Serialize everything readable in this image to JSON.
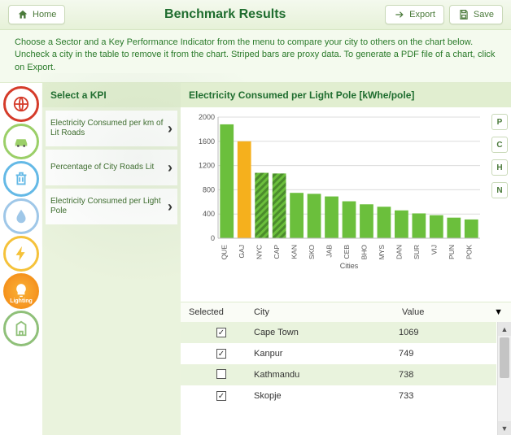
{
  "topbar": {
    "home_label": "Home",
    "title": "Benchmark Results",
    "export_label": "Export",
    "save_label": "Save"
  },
  "instructions": "Choose a Sector and a Key Performance Indicator from the menu to compare your city to others on the chart below. Uncheck a city in the table to remove it from the chart. Striped bars are proxy data. To generate a PDF file of a chart, click on Export.",
  "sectors": [
    {
      "name": "globe",
      "color": "#d53b2a"
    },
    {
      "name": "car",
      "color": "#9bcf68"
    },
    {
      "name": "trash",
      "color": "#64b9e6"
    },
    {
      "name": "water",
      "color": "#9fc7e8"
    },
    {
      "name": "energy",
      "color": "#f5c23a"
    },
    {
      "name": "lighting",
      "color": "#f5941d",
      "active": true,
      "label": "Lighting"
    },
    {
      "name": "building",
      "color": "#8fc079"
    }
  ],
  "kpi": {
    "header": "Select a KPI",
    "items": [
      "Electricity Consumed per km of Lit Roads",
      "Percentage of City Roads Lit",
      "Electricity Consumed per Light Pole"
    ]
  },
  "chart": {
    "title": "Electricity Consumed per Light Pole [kWhe/pole]",
    "type": "bar",
    "y": {
      "min": 0,
      "max": 2000,
      "step": 400,
      "ticks": [
        0,
        400,
        800,
        1200,
        1600,
        2000
      ]
    },
    "xlabel": "Cities",
    "colors": {
      "bar": "#6bbf3c",
      "highlight": "#f5b01d",
      "stripe_dark": "#4b8c2c",
      "grid": "#dcdcdc",
      "axis": "#bbbbbb",
      "text": "#4a7a3a",
      "background": "#ffffff"
    },
    "bars": [
      {
        "label": "QUE",
        "value": 1880
      },
      {
        "label": "GAJ",
        "value": 1600,
        "highlight": true
      },
      {
        "label": "NYC",
        "value": 1080,
        "proxy": true
      },
      {
        "label": "CAP",
        "value": 1069,
        "proxy": true
      },
      {
        "label": "KAN",
        "value": 749
      },
      {
        "label": "SKO",
        "value": 733
      },
      {
        "label": "JAB",
        "value": 690
      },
      {
        "label": "CEB",
        "value": 610
      },
      {
        "label": "BHO",
        "value": 560
      },
      {
        "label": "MYS",
        "value": 520
      },
      {
        "label": "DAN",
        "value": 460
      },
      {
        "label": "SUR",
        "value": 410
      },
      {
        "label": "VIJ",
        "value": 380
      },
      {
        "label": "PUN",
        "value": 340
      },
      {
        "label": "POK",
        "value": 310
      }
    ],
    "side_controls": [
      "P",
      "C",
      "H",
      "N"
    ]
  },
  "table": {
    "columns": [
      "Selected",
      "City",
      "Value"
    ],
    "rows": [
      {
        "selected": true,
        "city": "Cape Town",
        "value": 1069
      },
      {
        "selected": true,
        "city": "Kanpur",
        "value": 749
      },
      {
        "selected": false,
        "city": "Kathmandu",
        "value": 738
      },
      {
        "selected": true,
        "city": "Skopje",
        "value": 733
      }
    ],
    "sort_indicator": "▼"
  }
}
